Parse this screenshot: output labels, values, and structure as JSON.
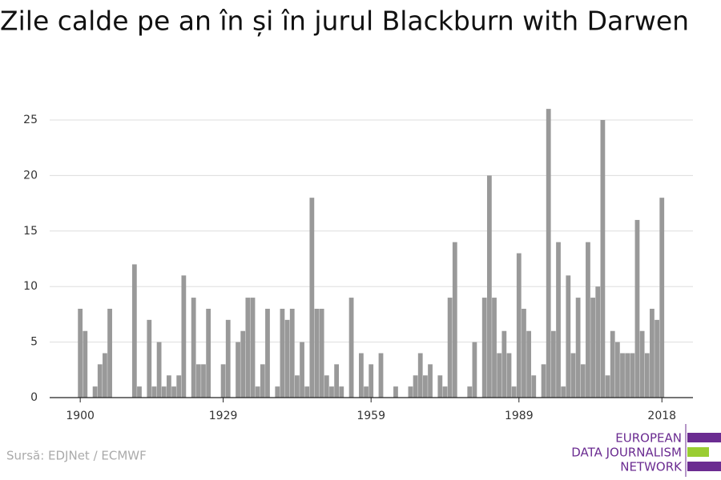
{
  "chart_data": {
    "type": "bar",
    "title": "Zile calde pe an în și în jurul Blackburn with Darwen",
    "source": "Sursă: EDJNet / ECMWF",
    "logo": [
      "EUROPEAN",
      "DATA JOURNALISM",
      "NETWORK"
    ],
    "x": [
      1900,
      1901,
      1902,
      1903,
      1904,
      1905,
      1906,
      1907,
      1908,
      1909,
      1910,
      1911,
      1912,
      1913,
      1914,
      1915,
      1916,
      1917,
      1918,
      1919,
      1920,
      1921,
      1922,
      1923,
      1924,
      1925,
      1926,
      1927,
      1928,
      1929,
      1930,
      1931,
      1932,
      1933,
      1934,
      1935,
      1936,
      1937,
      1938,
      1939,
      1940,
      1941,
      1942,
      1943,
      1944,
      1945,
      1946,
      1947,
      1948,
      1949,
      1950,
      1951,
      1952,
      1953,
      1954,
      1955,
      1956,
      1957,
      1958,
      1959,
      1960,
      1961,
      1962,
      1963,
      1964,
      1965,
      1966,
      1967,
      1968,
      1969,
      1970,
      1971,
      1972,
      1973,
      1974,
      1975,
      1976,
      1977,
      1978,
      1979,
      1980,
      1981,
      1982,
      1983,
      1984,
      1985,
      1986,
      1987,
      1988,
      1989,
      1990,
      1991,
      1992,
      1993,
      1994,
      1995,
      1996,
      1997,
      1998,
      1999,
      2000,
      2001,
      2002,
      2003,
      2004,
      2005,
      2006,
      2007,
      2008,
      2009,
      2010,
      2011,
      2012,
      2013,
      2014,
      2015,
      2016,
      2017,
      2018
    ],
    "values": [
      8,
      6,
      0,
      1,
      3,
      4,
      8,
      0,
      0,
      0,
      0,
      12,
      1,
      0,
      7,
      1,
      5,
      1,
      2,
      1,
      2,
      11,
      0,
      9,
      3,
      3,
      8,
      0,
      0,
      3,
      7,
      0,
      5,
      6,
      9,
      9,
      1,
      3,
      8,
      0,
      1,
      8,
      7,
      8,
      2,
      5,
      1,
      18,
      8,
      8,
      2,
      1,
      3,
      1,
      0,
      9,
      0,
      4,
      1,
      3,
      0,
      4,
      0,
      0,
      1,
      0,
      0,
      1,
      2,
      4,
      2,
      3,
      0,
      2,
      1,
      9,
      14,
      0,
      0,
      1,
      5,
      0,
      9,
      20,
      9,
      4,
      6,
      4,
      1,
      13,
      8,
      6,
      2,
      0,
      3,
      26,
      6,
      14,
      1,
      11,
      4,
      9,
      3,
      14,
      9,
      10,
      25,
      2,
      6,
      5,
      4,
      4,
      4,
      16,
      6,
      4,
      8,
      7,
      18
    ],
    "color": "#999999",
    "xlim": [
      1893.8,
      2024.3
    ],
    "xticks": [
      1900,
      1929,
      1959,
      1989,
      2018
    ],
    "ylim": [
      0,
      27
    ],
    "yticks": [
      0,
      5,
      10,
      15,
      20,
      25
    ],
    "grid": true
  }
}
